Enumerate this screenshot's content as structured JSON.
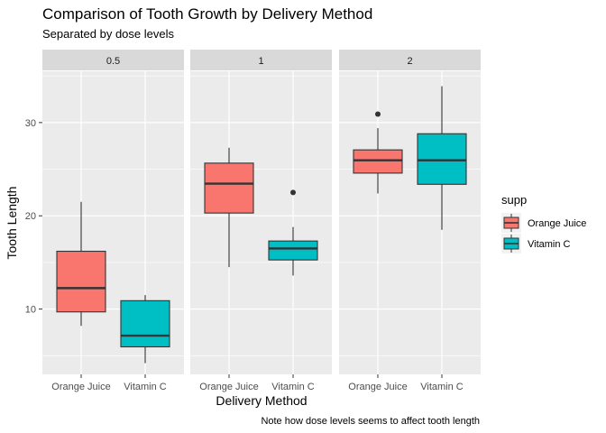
{
  "chart_data": {
    "type": "boxplot",
    "title": "Comparison of Tooth Growth by Delivery Method",
    "subtitle": "Separated by dose levels",
    "caption": "Note how dose levels seems to affect tooth length",
    "xlabel": "Delivery Method",
    "ylabel": "Tooth Length",
    "ylim": [
      3,
      35.5
    ],
    "y_ticks": [
      10,
      20,
      30
    ],
    "grid": true,
    "legend": {
      "title": "supp",
      "position": "right",
      "entries": [
        {
          "label": "Orange Juice",
          "color": "#F8766D"
        },
        {
          "label": "Vitamin C",
          "color": "#00BFC4"
        }
      ]
    },
    "categories": [
      "Orange Juice",
      "Vitamin C"
    ],
    "panels": [
      {
        "label": "0.5",
        "boxes": [
          {
            "category": "Orange Juice",
            "color": "#F8766D",
            "min": 8.2,
            "q1": 9.7,
            "median": 12.25,
            "q3": 16.2,
            "max": 21.5,
            "outliers": []
          },
          {
            "category": "Vitamin C",
            "color": "#00BFC4",
            "min": 4.2,
            "q1": 5.95,
            "median": 7.15,
            "q3": 10.9,
            "max": 11.5,
            "outliers": []
          }
        ]
      },
      {
        "label": "1",
        "boxes": [
          {
            "category": "Orange Juice",
            "color": "#F8766D",
            "min": 14.5,
            "q1": 20.3,
            "median": 23.45,
            "q3": 25.65,
            "max": 27.3,
            "outliers": []
          },
          {
            "category": "Vitamin C",
            "color": "#00BFC4",
            "min": 13.6,
            "q1": 15.27,
            "median": 16.5,
            "q3": 17.3,
            "max": 18.8,
            "outliers": [
              22.5
            ]
          }
        ]
      },
      {
        "label": "2",
        "boxes": [
          {
            "category": "Orange Juice",
            "color": "#F8766D",
            "min": 22.4,
            "q1": 24.58,
            "median": 25.95,
            "q3": 27.07,
            "max": 29.4,
            "outliers": [
              30.9
            ]
          },
          {
            "category": "Vitamin C",
            "color": "#00BFC4",
            "min": 18.5,
            "q1": 23.38,
            "median": 25.95,
            "q3": 28.8,
            "max": 33.9,
            "outliers": []
          }
        ]
      }
    ],
    "colors": {
      "panel_bg": "#EBEBEB",
      "strip_bg": "#D9D9D9",
      "grid_major": "#FFFFFF",
      "text": "#000000",
      "tick_text": "#4D4D4D",
      "box_outline": "#333333"
    }
  }
}
